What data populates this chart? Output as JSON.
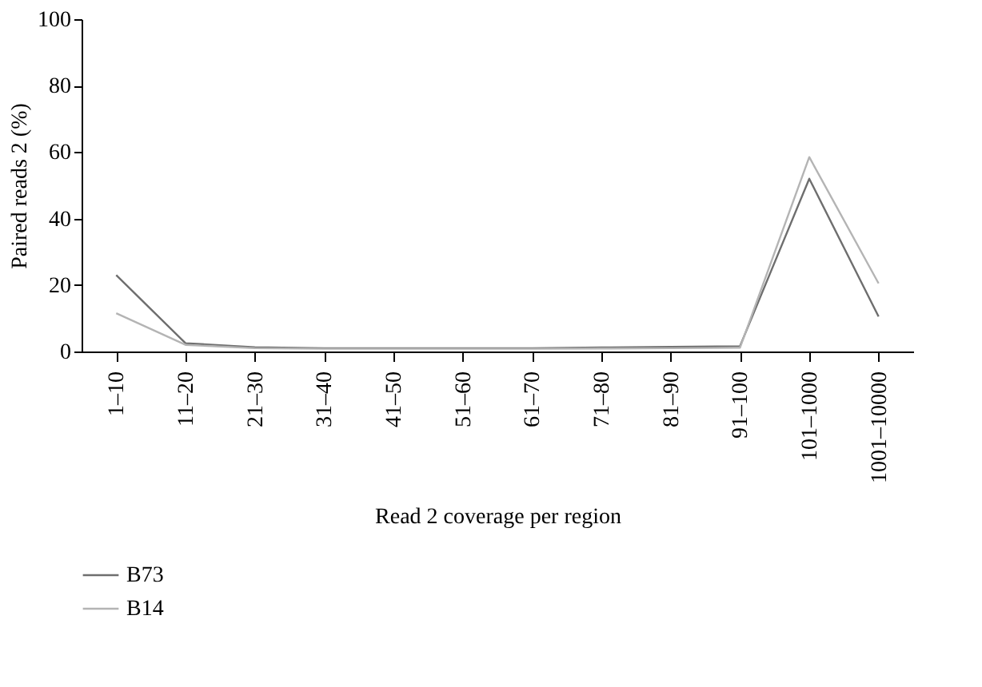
{
  "chart_data": {
    "type": "line",
    "xlabel": "Read 2 coverage per region",
    "ylabel": "Paired reads 2 (%)",
    "categories": [
      "1–10",
      "11–20",
      "21–30",
      "31–40",
      "41–50",
      "51–60",
      "61–70",
      "71–80",
      "81–90",
      "91–100",
      "101–1000",
      "1001–10000"
    ],
    "series": [
      {
        "name": "B73",
        "color": "#6e6e6e",
        "values": [
          23,
          2.5,
          1.3,
          1,
          1,
          1,
          1,
          1.2,
          1.4,
          1.6,
          52,
          10.5
        ]
      },
      {
        "name": "B14",
        "color": "#b4b4b4",
        "values": [
          11.5,
          2,
          1,
          0.8,
          0.8,
          0.8,
          0.8,
          0.9,
          1,
          1.1,
          58.5,
          20.5
        ]
      }
    ],
    "ylim": [
      0,
      100
    ],
    "yticks": [
      0,
      20,
      40,
      60,
      80,
      100
    ],
    "grid": false,
    "legend": "bottom",
    "marker": "none",
    "line_style": "solid"
  }
}
